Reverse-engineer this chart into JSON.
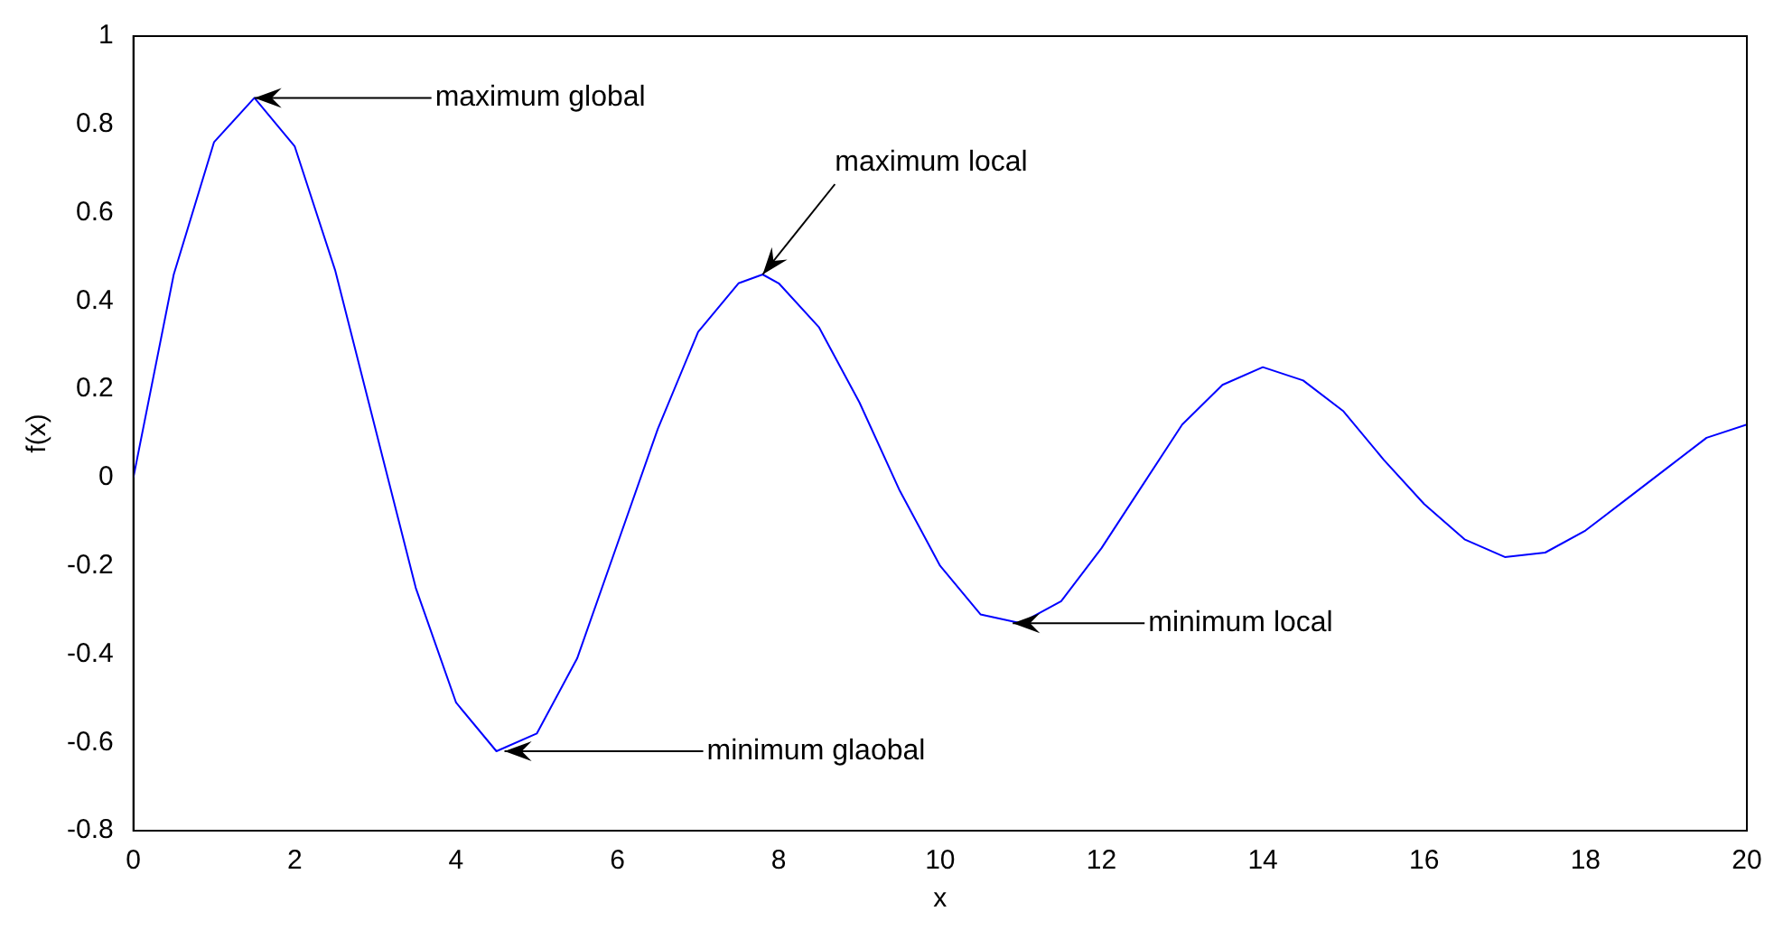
{
  "chart_data": {
    "type": "line",
    "xlabel": "x",
    "ylabel": "f(x)",
    "x": [
      0,
      0.5,
      1,
      1.5,
      2,
      2.5,
      3,
      3.5,
      4,
      4.5,
      5,
      5.5,
      6,
      6.5,
      7,
      7.5,
      7.8,
      8,
      8.5,
      9,
      9.5,
      10,
      10.5,
      11,
      11.5,
      12,
      12.5,
      13,
      13.5,
      14,
      14.5,
      15,
      15.5,
      16,
      16.5,
      17,
      17.5,
      18,
      18.5,
      19,
      19.5,
      20
    ],
    "series": [
      {
        "color": "#0000ff",
        "values": [
          0,
          0.46,
          0.76,
          0.86,
          0.75,
          0.47,
          0.11,
          -0.25,
          -0.51,
          -0.62,
          -0.58,
          -0.41,
          -0.15,
          0.11,
          0.33,
          0.44,
          0.46,
          0.44,
          0.34,
          0.17,
          -0.03,
          -0.2,
          -0.31,
          -0.33,
          -0.28,
          -0.16,
          -0.02,
          0.12,
          0.21,
          0.25,
          0.22,
          0.15,
          0.04,
          -0.06,
          -0.14,
          -0.18,
          -0.17,
          -0.12,
          -0.05,
          0.02,
          0.09,
          0.12
        ]
      }
    ],
    "xlim": [
      0,
      20
    ],
    "xticks": [
      0,
      2,
      4,
      6,
      8,
      10,
      12,
      14,
      16,
      18,
      20
    ],
    "ylim": [
      -0.8,
      1
    ],
    "yticks": [
      -0.8,
      -0.6,
      -0.4,
      -0.2,
      0,
      0.2,
      0.4,
      0.6,
      0.8,
      1
    ],
    "grid": false,
    "legend": false,
    "marker": "none",
    "line_style": "solid",
    "annotations": [
      {
        "text": "maximum global",
        "x": 1.5,
        "y": 0.86
      },
      {
        "text": "maximum local",
        "x": 7.8,
        "y": 0.46
      },
      {
        "text": "minimum local",
        "x": 10.9,
        "y": -0.33
      },
      {
        "text": "minimum glaobal",
        "x": 4.6,
        "y": -0.62
      }
    ]
  }
}
